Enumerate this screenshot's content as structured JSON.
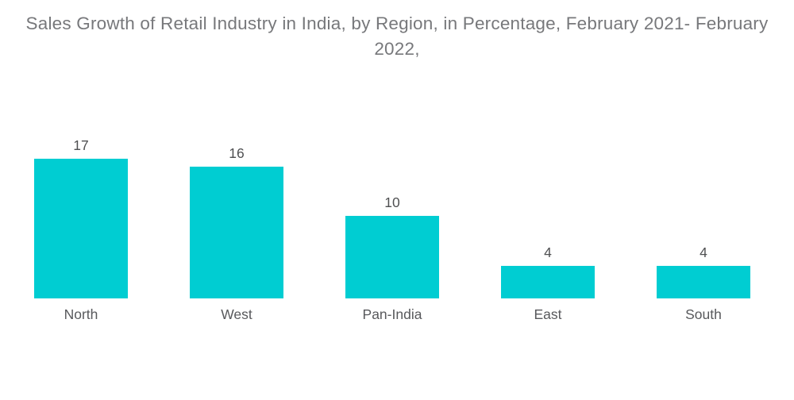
{
  "title": "Sales Growth of Retail Industry in India, by Region, in Percentage, February 2021- February 2022,",
  "chart_data": {
    "type": "bar",
    "title": "Sales Growth of Retail Industry in India, by Region, in Percentage, February 2021- February 2022,",
    "categories": [
      "North",
      "West",
      "Pan-India",
      "East",
      "South"
    ],
    "values": [
      17,
      16,
      10,
      4,
      4
    ],
    "xlabel": "",
    "ylabel": "",
    "ylim": [
      0,
      17
    ],
    "grid": false,
    "legend": false,
    "data_labels_shown": true,
    "orientation": "vertical"
  },
  "colors": {
    "bar_fill": "#00cdd2",
    "title_text": "#77787b",
    "value_text": "#4f5052",
    "category_text": "#58595c",
    "background": "#ffffff"
  }
}
